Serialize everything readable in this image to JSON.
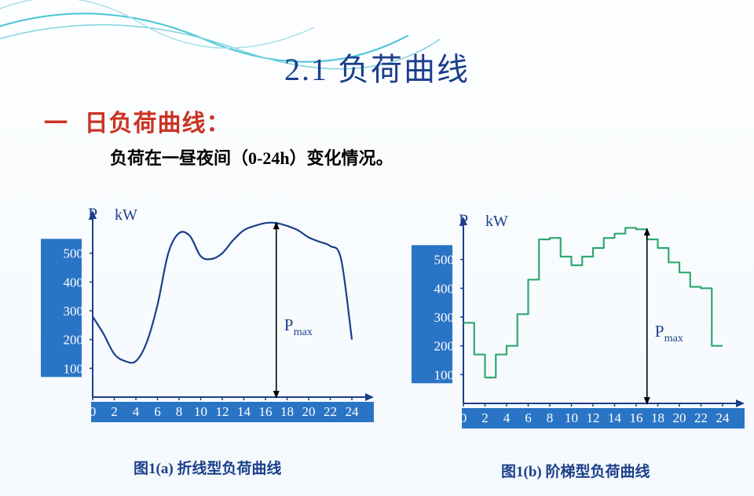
{
  "title": "2.1 负荷曲线",
  "section_dash": "一",
  "section_heading": "日负荷曲线：",
  "subtitle": "负荷在一昼夜间（0-24h）变化情况。",
  "axis": {
    "y_label": "P",
    "y_unit": "kW",
    "y_ticks": [
      "100",
      "200",
      "300",
      "400",
      "500"
    ],
    "x_ticks": [
      "0",
      "2",
      "4",
      "6",
      "8",
      "10",
      "12",
      "14",
      "16",
      "18",
      "20",
      "22",
      "24"
    ],
    "ymax_value": 600,
    "ymin_value": 0,
    "xmax_value": 24
  },
  "pmax_label": "P",
  "pmax_sub": "max",
  "chart_a": {
    "caption": "图1(a)  折线型负荷曲线",
    "line_color": "#1b3f8a",
    "bg_box_fill": "#2a74c5",
    "points": [
      [
        0,
        280
      ],
      [
        1,
        220
      ],
      [
        2,
        150
      ],
      [
        3,
        125
      ],
      [
        4,
        125
      ],
      [
        5,
        190
      ],
      [
        6,
        320
      ],
      [
        7,
        500
      ],
      [
        8,
        570
      ],
      [
        9,
        560
      ],
      [
        10,
        490
      ],
      [
        11,
        480
      ],
      [
        12,
        500
      ],
      [
        13,
        545
      ],
      [
        14,
        580
      ],
      [
        15,
        595
      ],
      [
        16,
        605
      ],
      [
        17,
        605
      ],
      [
        18,
        595
      ],
      [
        19,
        580
      ],
      [
        20,
        555
      ],
      [
        21,
        540
      ],
      [
        22,
        525
      ],
      [
        23,
        480
      ],
      [
        24,
        200
      ]
    ]
  },
  "chart_b": {
    "caption": "图1(b)  阶梯型负荷曲线",
    "line_color": "#2fa86e",
    "bg_box_fill": "#2a74c5",
    "steps": [
      [
        0,
        280
      ],
      [
        1,
        280
      ],
      [
        1,
        170
      ],
      [
        2,
        170
      ],
      [
        2,
        90
      ],
      [
        3,
        90
      ],
      [
        3,
        170
      ],
      [
        4,
        170
      ],
      [
        4,
        200
      ],
      [
        5,
        200
      ],
      [
        5,
        310
      ],
      [
        6,
        310
      ],
      [
        6,
        430
      ],
      [
        7,
        430
      ],
      [
        7,
        570
      ],
      [
        8,
        570
      ],
      [
        8,
        575
      ],
      [
        9,
        575
      ],
      [
        9,
        510
      ],
      [
        10,
        510
      ],
      [
        10,
        480
      ],
      [
        11,
        480
      ],
      [
        11,
        510
      ],
      [
        12,
        510
      ],
      [
        12,
        540
      ],
      [
        13,
        540
      ],
      [
        13,
        575
      ],
      [
        14,
        575
      ],
      [
        14,
        590
      ],
      [
        15,
        590
      ],
      [
        15,
        610
      ],
      [
        16,
        610
      ],
      [
        16,
        605
      ],
      [
        17,
        605
      ],
      [
        17,
        570
      ],
      [
        18,
        570
      ],
      [
        18,
        540
      ],
      [
        19,
        540
      ],
      [
        19,
        490
      ],
      [
        20,
        490
      ],
      [
        20,
        455
      ],
      [
        21,
        455
      ],
      [
        21,
        405
      ],
      [
        22,
        405
      ],
      [
        22,
        400
      ],
      [
        23,
        400
      ],
      [
        23,
        200
      ],
      [
        24,
        200
      ]
    ]
  }
}
